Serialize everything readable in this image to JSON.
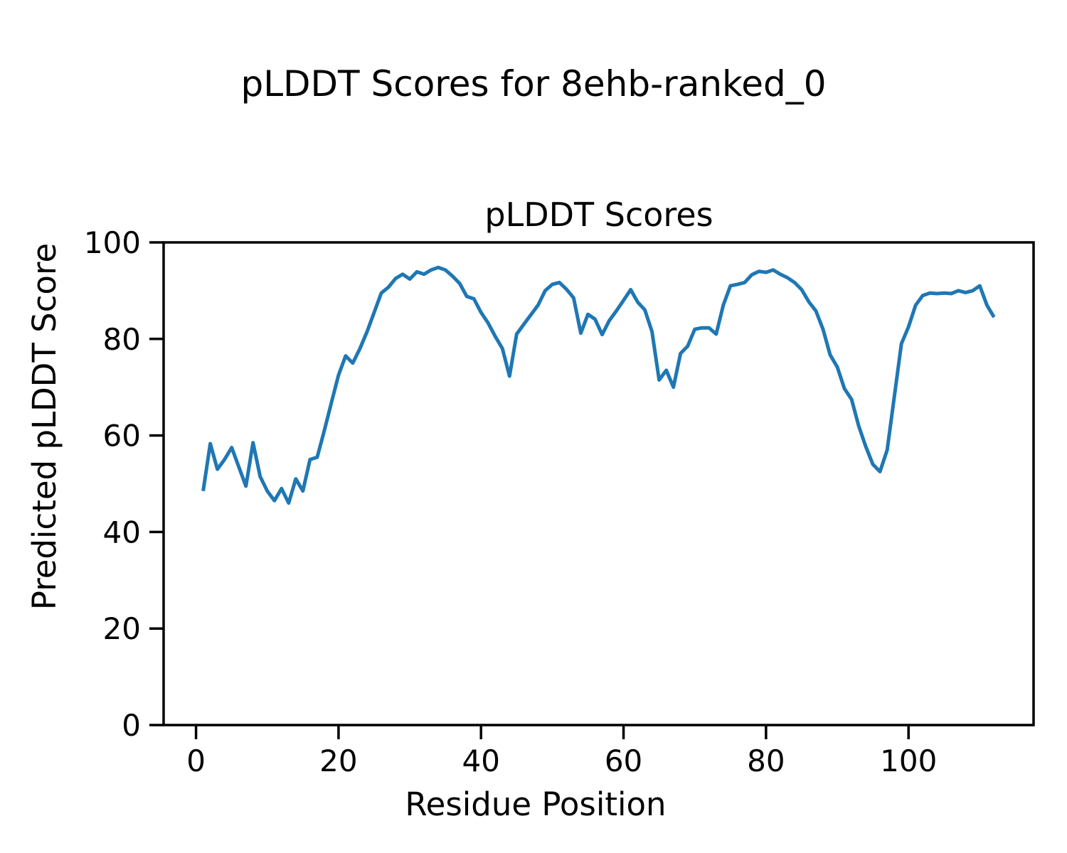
{
  "chart_data": {
    "type": "line",
    "suptitle": "pLDDT Scores for 8ehb-ranked_0",
    "title": "pLDDT Scores",
    "xlabel": "Residue Position",
    "ylabel": "Predicted pLDDT Score",
    "line_color": "#1f77b4",
    "background_color": "#ffffff",
    "grid": "off",
    "legend": "none",
    "xlim": [
      -4.55,
      117.55
    ],
    "ylim": [
      0,
      100
    ],
    "xticks": [
      0,
      20,
      40,
      60,
      80,
      100
    ],
    "yticks": [
      0,
      20,
      40,
      60,
      80,
      100
    ],
    "x": [
      1,
      2,
      3,
      4,
      5,
      6,
      7,
      8,
      9,
      10,
      11,
      12,
      13,
      14,
      15,
      16,
      17,
      18,
      19,
      20,
      21,
      22,
      23,
      24,
      25,
      26,
      27,
      28,
      29,
      30,
      31,
      32,
      33,
      34,
      35,
      36,
      37,
      38,
      39,
      40,
      41,
      42,
      43,
      44,
      45,
      46,
      47,
      48,
      49,
      50,
      51,
      52,
      53,
      54,
      55,
      56,
      57,
      58,
      59,
      60,
      61,
      62,
      63,
      64,
      65,
      66,
      67,
      68,
      69,
      70,
      71,
      72,
      73,
      74,
      75,
      76,
      77,
      78,
      79,
      80,
      81,
      82,
      83,
      84,
      85,
      86,
      87,
      88,
      89,
      90,
      91,
      92,
      93,
      94,
      95,
      96,
      97,
      98,
      99,
      100,
      101,
      102,
      103,
      104,
      105,
      106,
      107,
      108,
      109,
      110,
      111,
      112
    ],
    "series": [
      {
        "name": "pLDDT",
        "values": [
          48.5,
          58.3,
          53.0,
          55.0,
          57.5,
          53.5,
          49.5,
          58.5,
          51.5,
          48.5,
          46.5,
          49.0,
          46.0,
          51.0,
          48.5,
          55.0,
          55.5,
          61.0,
          66.8,
          72.5,
          76.5,
          75.0,
          78.0,
          81.5,
          85.5,
          89.5,
          90.7,
          92.5,
          93.4,
          92.4,
          93.9,
          93.4,
          94.3,
          94.8,
          94.3,
          93.0,
          91.5,
          88.8,
          88.3,
          85.5,
          83.3,
          80.5,
          78.0,
          72.3,
          81.0,
          83.0,
          85.0,
          87.0,
          90.0,
          91.3,
          91.7,
          90.3,
          88.5,
          81.2,
          85.1,
          84.1,
          80.9,
          83.8,
          85.8,
          88.0,
          90.2,
          87.6,
          86.0,
          81.5,
          71.5,
          73.5,
          70.0,
          77.0,
          78.5,
          82.0,
          82.3,
          82.3,
          81.0,
          87.0,
          91.0,
          91.3,
          91.7,
          93.3,
          94.0,
          93.8,
          94.3,
          93.4,
          92.7,
          91.7,
          90.2,
          87.7,
          85.8,
          82.0,
          76.7,
          74.2,
          69.7,
          67.5,
          62.0,
          57.7,
          54.0,
          52.5,
          57.0,
          68.0,
          79.0,
          82.5,
          87.0,
          89.0,
          89.5,
          89.4,
          89.5,
          89.4,
          90.0,
          89.6,
          90.0,
          91.0,
          87.0,
          84.5
        ]
      }
    ]
  }
}
